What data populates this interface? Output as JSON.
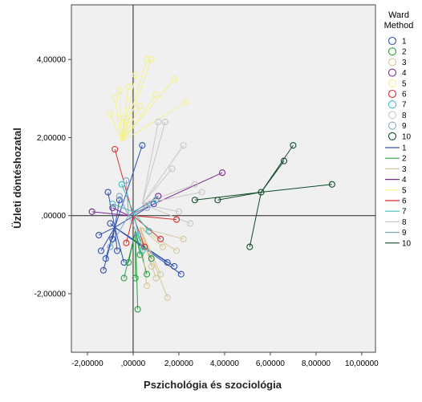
{
  "chart_data": {
    "type": "scatter",
    "title": "",
    "xlabel": "Pszichológia és szociológia",
    "ylabel": "Üzleti döntéshozatal",
    "xlim": [
      -2.7,
      10.6
    ],
    "ylim": [
      -3.5,
      5.4
    ],
    "xticks": [
      -2,
      0,
      2,
      4,
      6,
      8,
      10
    ],
    "xtick_labels": [
      "-2,00000",
      ",00000",
      "2,00000",
      "4,00000",
      "6,00000",
      "8,00000",
      "10,00000"
    ],
    "yticks": [
      -2,
      0,
      2,
      4
    ],
    "ytick_labels": [
      "-2,00000",
      ",00000",
      "2,00000",
      "4,00000"
    ],
    "reference_lines": {
      "x": 0,
      "y": 0
    },
    "grid": false,
    "plot_background": "#f0f0f0",
    "legend": {
      "title": "Ward Method",
      "title_lines": [
        "Ward",
        "Method"
      ],
      "placement": "right"
    },
    "series": [
      {
        "name": "1",
        "color": "#3050b0",
        "center": [
          -0.8,
          -0.3
        ],
        "points": [
          [
            -1.3,
            -1.4
          ],
          [
            -1.2,
            -1.1
          ],
          [
            -0.9,
            -0.6
          ],
          [
            -1.5,
            -0.5
          ],
          [
            -1.1,
            0.6
          ],
          [
            -0.7,
            -0.9
          ],
          [
            0.4,
            1.8
          ],
          [
            2.1,
            -1.5
          ],
          [
            1.5,
            -1.2
          ],
          [
            -1.4,
            -0.9
          ],
          [
            -0.6,
            0.4
          ],
          [
            -1.0,
            -0.2
          ],
          [
            1.8,
            -1.3
          ],
          [
            -0.4,
            -1.2
          ],
          [
            0.9,
            0.3
          ]
        ]
      },
      {
        "name": "2",
        "color": "#2aa040",
        "center": [
          0.1,
          -0.4
        ],
        "points": [
          [
            0.2,
            -2.4
          ],
          [
            -0.4,
            -1.6
          ],
          [
            0.1,
            -1.6
          ],
          [
            0.6,
            -1.5
          ],
          [
            -0.2,
            -1.2
          ],
          [
            0.3,
            -1.0
          ],
          [
            0.8,
            -1.1
          ]
        ]
      },
      {
        "name": "3",
        "color": "#d6c89a",
        "center": [
          0.3,
          -0.3
        ],
        "points": [
          [
            1.5,
            -2.1
          ],
          [
            1.0,
            -1.6
          ],
          [
            2.2,
            -0.6
          ],
          [
            0.6,
            -1.8
          ],
          [
            1.3,
            -0.8
          ],
          [
            0.8,
            -1.3
          ],
          [
            1.9,
            -0.9
          ],
          [
            1.2,
            -1.5
          ]
        ]
      },
      {
        "name": "4",
        "color": "#7a2a90",
        "center": [
          -0.2,
          0.0
        ],
        "points": [
          [
            3.9,
            1.1
          ],
          [
            -1.8,
            0.1
          ],
          [
            -0.9,
            0.2
          ],
          [
            1.1,
            0.5
          ]
        ]
      },
      {
        "name": "5",
        "color": "#f4f08a",
        "center": [
          -0.5,
          1.9
        ],
        "points": [
          [
            0.6,
            4.0
          ],
          [
            0.8,
            4.0
          ],
          [
            1.8,
            3.5
          ],
          [
            2.3,
            2.9
          ],
          [
            -0.2,
            3.3
          ],
          [
            -0.8,
            3.0
          ],
          [
            0.3,
            2.8
          ],
          [
            1.0,
            3.1
          ],
          [
            -1.0,
            2.6
          ],
          [
            -0.4,
            2.5
          ],
          [
            0.1,
            3.6
          ],
          [
            -0.6,
            3.2
          ]
        ]
      },
      {
        "name": "6",
        "color": "#d43030",
        "center": [
          0.0,
          0.0
        ],
        "points": [
          [
            -0.8,
            1.7
          ],
          [
            1.9,
            -0.1
          ],
          [
            1.2,
            -0.6
          ],
          [
            0.5,
            -0.8
          ],
          [
            -0.3,
            -0.7
          ]
        ]
      },
      {
        "name": "7",
        "color": "#40c0c0",
        "center": [
          0.0,
          0.1
        ],
        "points": [
          [
            -0.5,
            0.8
          ],
          [
            0.4,
            -0.9
          ],
          [
            1.0,
            0.4
          ],
          [
            -0.9,
            0.3
          ],
          [
            0.7,
            -0.4
          ]
        ]
      },
      {
        "name": "8",
        "color": "#c8c8c8",
        "center": [
          0.4,
          0.3
        ],
        "points": [
          [
            1.4,
            2.4
          ],
          [
            2.2,
            1.8
          ],
          [
            3.0,
            0.6
          ],
          [
            2.5,
            -0.2
          ],
          [
            1.1,
            2.4
          ],
          [
            2.7,
            0.8
          ],
          [
            1.7,
            1.2
          ],
          [
            2.0,
            0.1
          ]
        ]
      },
      {
        "name": "9",
        "color": "#80a8c0",
        "center": [
          -0.2,
          0.0
        ],
        "points": [
          [
            -1.0,
            -0.8
          ],
          [
            -0.6,
            0.5
          ],
          [
            0.2,
            -0.5
          ],
          [
            -0.3,
            0.9
          ],
          [
            0.6,
            0.2
          ]
        ]
      },
      {
        "name": "10",
        "color": "#104a28",
        "center": [
          5.6,
          0.6
        ],
        "points": [
          [
            7.0,
            1.8
          ],
          [
            6.6,
            1.4
          ],
          [
            8.7,
            0.8
          ],
          [
            2.7,
            0.4
          ],
          [
            3.7,
            0.4
          ],
          [
            5.1,
            -0.8
          ],
          [
            5.6,
            0.6
          ]
        ]
      }
    ]
  }
}
